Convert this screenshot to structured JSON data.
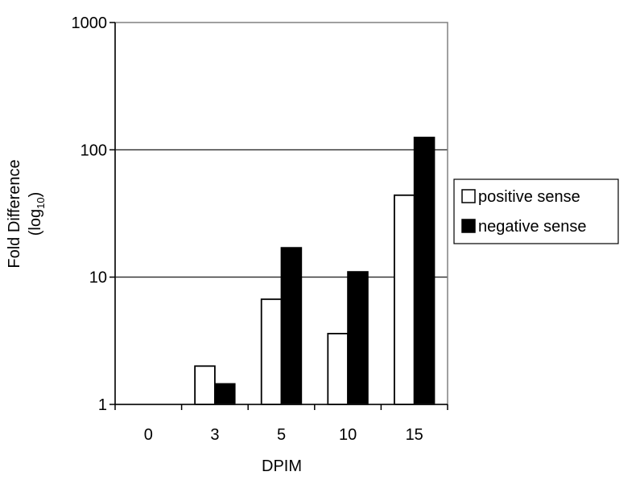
{
  "chart_data": {
    "type": "bar",
    "categories": [
      "0",
      "3",
      "5",
      "10",
      "15"
    ],
    "series": [
      {
        "name": "positive sense",
        "values": [
          1,
          2.0,
          6.7,
          3.6,
          44
        ],
        "color": "#ffffff"
      },
      {
        "name": "negative sense",
        "values": [
          1,
          1.45,
          17,
          11,
          125
        ],
        "color": "#000000"
      }
    ],
    "xlabel": "DPIM",
    "ylabel_main": "Fold Difference",
    "ylabel_sub_prefix": "(log",
    "ylabel_sub_index": "10",
    "ylabel_sub_suffix": ")",
    "y_scale": "log",
    "ylim": [
      1,
      1000
    ],
    "yticks": [
      {
        "value": 1,
        "label": "1"
      },
      {
        "value": 10,
        "label": "10"
      },
      {
        "value": 100,
        "label": "100"
      },
      {
        "value": 1000,
        "label": "1000"
      }
    ],
    "grid": true,
    "legend_position": "right"
  }
}
